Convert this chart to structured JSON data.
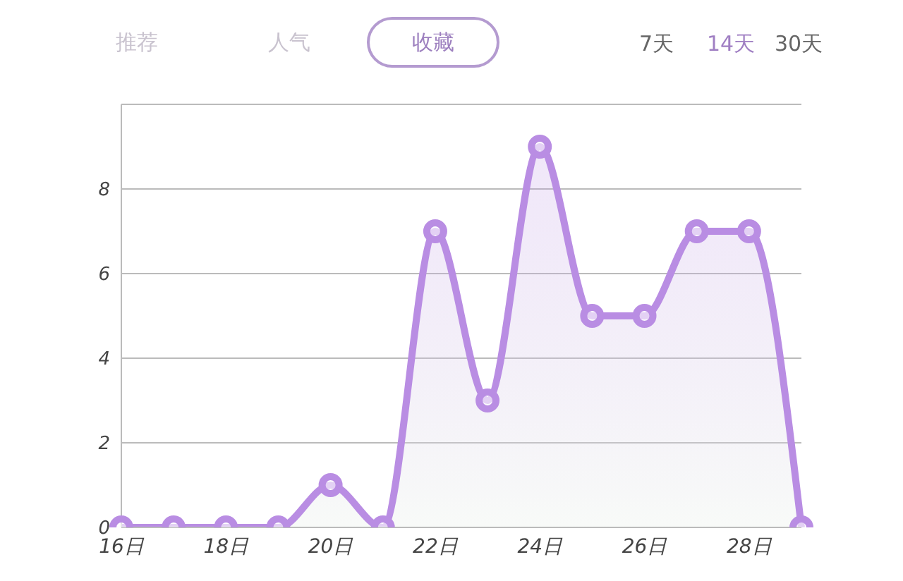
{
  "chart_data": {
    "type": "area",
    "categories": [
      "16日",
      null,
      "18日",
      null,
      "20日",
      null,
      "22日",
      null,
      "24日",
      null,
      "26日",
      null,
      "28日",
      null
    ],
    "series": [
      {
        "color": "#b98de3",
        "values": [
          0,
          0,
          0,
          0,
          1,
          0,
          7,
          3,
          9,
          5,
          5,
          7,
          7,
          0
        ]
      }
    ],
    "ylim": [
      0,
      10
    ],
    "yticks": [
      0,
      2,
      4,
      6,
      8
    ],
    "grid": "y",
    "marker": "circle",
    "line_style": "solid",
    "annotations": [
      "推荐",
      "人气",
      "收藏",
      "7天",
      "14天",
      "30天"
    ]
  }
}
